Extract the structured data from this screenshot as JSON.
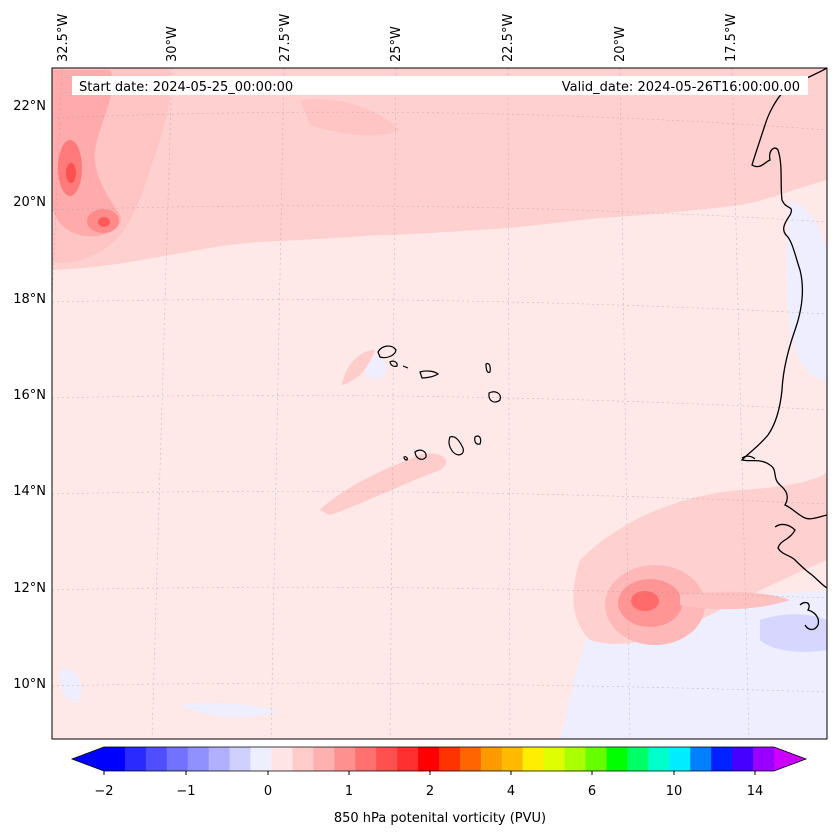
{
  "map": {
    "start_label": "Start date: 2024-05-25_00:00:00",
    "valid_label": "Valid_date: 2024-05-26T16:00:00.00",
    "lon_labels": [
      "32.5°W",
      "30°W",
      "27.5°W",
      "25°W",
      "22.5°W",
      "20°W",
      "17.5°W"
    ],
    "lat_labels": [
      "22°N",
      "20°N",
      "18°N",
      "16°N",
      "14°N",
      "12°N",
      "10°N"
    ],
    "features": {
      "islands": "Cape Verde Islands",
      "coastline": "West African coast (Mauritania, Senegal, Guinea-Bissau, Guinea)"
    }
  },
  "colorbar": {
    "title": "850 hPa potenital vorticity (PVU)",
    "tick_labels": [
      "−2",
      "−1",
      "0",
      "1",
      "2",
      "4",
      "6",
      "10",
      "14"
    ],
    "colors": [
      "#0000ff",
      "#2a2aff",
      "#4f4fff",
      "#7272ff",
      "#9090ff",
      "#b0b0ff",
      "#d0d0ff",
      "#eeeeff",
      "#ffe5e5",
      "#ffcccc",
      "#ffb0b0",
      "#ff9090",
      "#ff7070",
      "#ff5050",
      "#ff3030",
      "#ff0000",
      "#ff3300",
      "#ff6600",
      "#ff9900",
      "#ffbb00",
      "#ffee00",
      "#ddff00",
      "#aaff00",
      "#66ff00",
      "#00ff00",
      "#00ff66",
      "#00ffcc",
      "#00eeff",
      "#0080ff",
      "#0022ff",
      "#4400ff",
      "#9900ff"
    ],
    "under_color": "#0000ff",
    "over_color": "#cc00ff"
  }
}
